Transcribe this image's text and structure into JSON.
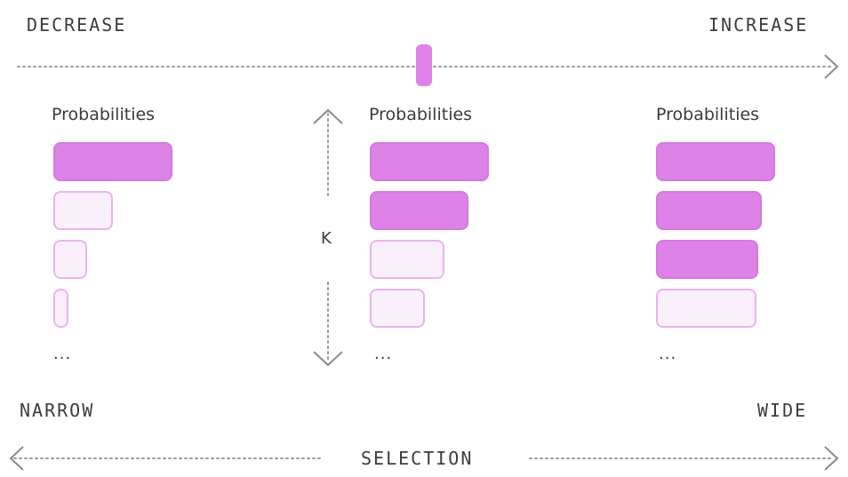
{
  "top_axis": {
    "left_label": "DECREASE",
    "right_label": "INCREASE",
    "slider_position": 0.5
  },
  "k_axis": {
    "label": "K"
  },
  "bottom_axis": {
    "left_label": "NARROW",
    "center_label": "SELECTION",
    "right_label": "WIDE"
  },
  "columns": [
    {
      "title": "Probabilities",
      "ellipsis": "...",
      "bars": [
        {
          "value": 1.0,
          "selected": true
        },
        {
          "value": 0.5,
          "selected": false
        },
        {
          "value": 0.28,
          "selected": false
        },
        {
          "value": 0.13,
          "selected": false
        }
      ]
    },
    {
      "title": "Probabilities",
      "ellipsis": "...",
      "bars": [
        {
          "value": 1.0,
          "selected": true
        },
        {
          "value": 0.83,
          "selected": true
        },
        {
          "value": 0.63,
          "selected": false
        },
        {
          "value": 0.46,
          "selected": false
        }
      ]
    },
    {
      "title": "Probabilities",
      "ellipsis": "...",
      "bars": [
        {
          "value": 1.0,
          "selected": true
        },
        {
          "value": 0.89,
          "selected": true
        },
        {
          "value": 0.86,
          "selected": true
        },
        {
          "value": 0.84,
          "selected": false
        }
      ]
    }
  ],
  "colors": {
    "selected": "#dd82e6",
    "unselected": "#faf0fb",
    "outline": "#e9b3ef",
    "dotted_line": "#9a9a9a"
  }
}
